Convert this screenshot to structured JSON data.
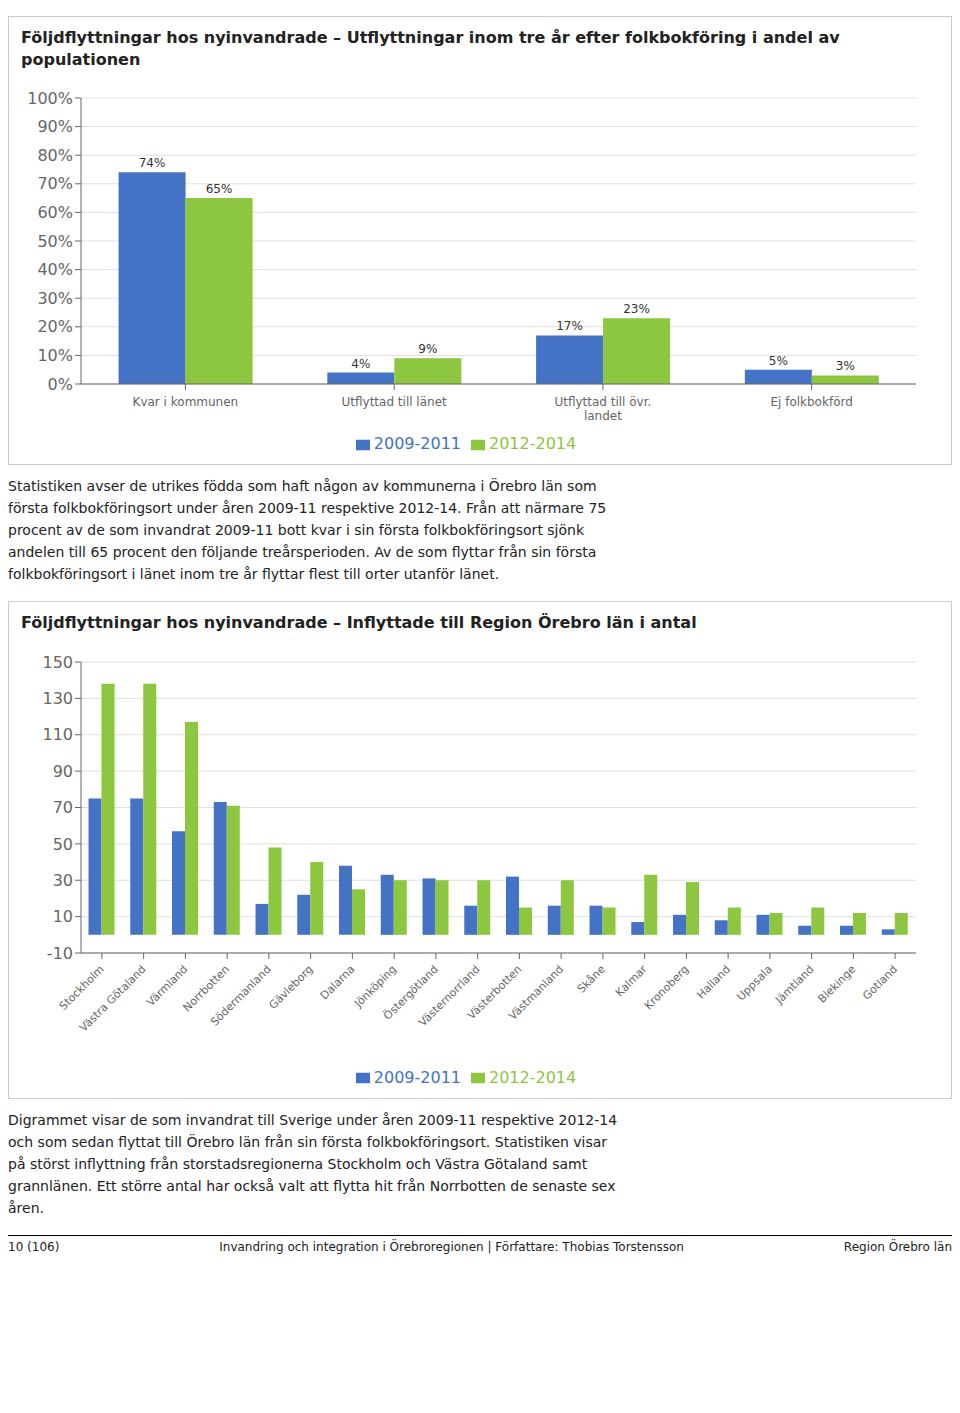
{
  "chart_data": [
    {
      "type": "bar",
      "title": "Följdflyttningar hos nyinvandrade – Utflyttningar inom tre år efter folkbokföring i andel av populationen",
      "categories": [
        "Kvar i kommunen",
        "Utflyttad till länet",
        "Utflyttad till övr.\nlandet",
        "Ej folkbokförd"
      ],
      "series": [
        {
          "name": "2009-2011",
          "color": "#4472C4",
          "values": [
            74,
            4,
            17,
            5
          ],
          "value_labels": [
            "74%",
            "4%",
            "17%",
            "5%"
          ]
        },
        {
          "name": "2012-2014",
          "color": "#8DC63F",
          "values": [
            65,
            9,
            23,
            3
          ],
          "value_labels": [
            "65%",
            "9%",
            "23%",
            "3%"
          ]
        }
      ],
      "ylim": [
        0,
        100
      ],
      "yticks": [
        {
          "value": 0,
          "label": "0%"
        },
        {
          "value": 10,
          "label": "10%"
        },
        {
          "value": 20,
          "label": "20%"
        },
        {
          "value": 30,
          "label": "30%"
        },
        {
          "value": 40,
          "label": "40%"
        },
        {
          "value": 50,
          "label": "50%"
        },
        {
          "value": 60,
          "label": "60%"
        },
        {
          "value": 70,
          "label": "70%"
        },
        {
          "value": 80,
          "label": "80%"
        },
        {
          "value": 90,
          "label": "90%"
        },
        {
          "value": 100,
          "label": "100%"
        }
      ],
      "grid": true,
      "legend": "bottom",
      "data_labels": true,
      "annotations": [
        "Statistiken avser de utrikes födda som haft någon av kommunerna i Örebro län som",
        "första folkbokföringsort under åren 2009-11 respektive 2012-14. Från att närmare 75",
        "procent av de som invandrat 2009-11 bott kvar i sin första folkbokföringsort sjönk",
        "andelen till 65 procent den följande treårsperioden. Av de som flyttar från sin första",
        "folkbokföringsort i länet inom tre år flyttar flest till orter utanför länet."
      ]
    },
    {
      "type": "bar",
      "title": "Följdflyttningar hos nyinvandrade – Inflyttade till Region Örebro län i antal",
      "categories": [
        "Stockholm",
        "Västra Götaland",
        "Värmland",
        "Norrbotten",
        "Södermanland",
        "Gävleborg",
        "Dalarna",
        "Jönköping",
        "Östergötland",
        "Västernorrland",
        "Västerbotten",
        "Västmanland",
        "Skåne",
        "Kalmar",
        "Kronoberg",
        "Halland",
        "Uppsala",
        "Jämtland",
        "Blekinge",
        "Gotland"
      ],
      "series": [
        {
          "name": "2009-2011",
          "color": "#4472C4",
          "values": [
            75,
            75,
            57,
            73,
            17,
            22,
            38,
            33,
            31,
            16,
            32,
            16,
            16,
            7,
            11,
            8,
            11,
            5,
            5,
            3
          ]
        },
        {
          "name": "2012-2014",
          "color": "#8DC63F",
          "values": [
            138,
            138,
            117,
            71,
            48,
            40,
            25,
            30,
            30,
            30,
            15,
            30,
            15,
            33,
            29,
            15,
            12,
            15,
            12,
            12
          ]
        }
      ],
      "ylim": [
        -10,
        150
      ],
      "yticks": [
        -10,
        10,
        30,
        50,
        70,
        90,
        110,
        130,
        150
      ],
      "grid": true,
      "legend": "bottom",
      "annotations": [
        "Digrammet visar de som invandrat till Sverige under åren 2009-11 respektive 2012-14",
        "och som sedan flyttat till Örebro län från sin första folkbokföringsort. Statistiken visar",
        "på störst inflyttning från storstadsregionerna Stockholm och Västra Götaland samt",
        "grannlänen. Ett större antal har också valt att flytta hit från Norrbotten de senaste sex",
        "åren."
      ]
    }
  ],
  "footer": [
    "10 (106)",
    "Invandring och integration i Örebroregionen | Författare: Thobias Torstensson",
    "Region Örebro län"
  ]
}
